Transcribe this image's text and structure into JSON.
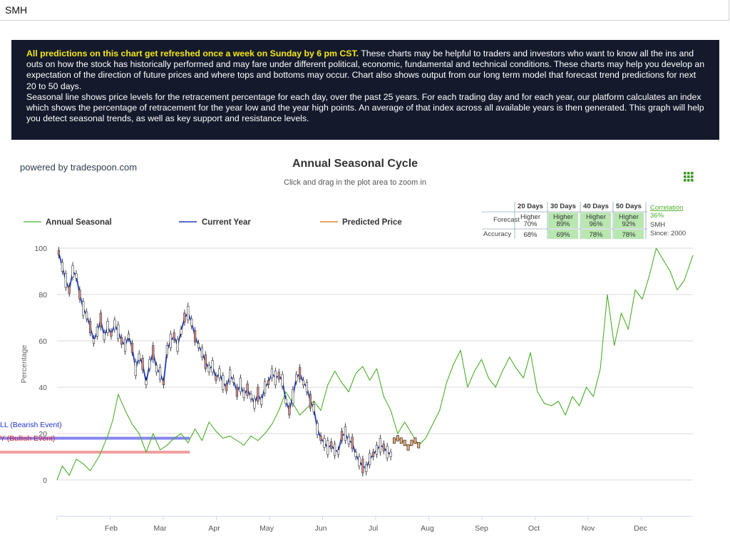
{
  "header": {
    "symbol": "SMH"
  },
  "notice": {
    "highlight": "All predictions on this chart get refreshed once a week on Sunday by 6 pm CST.",
    "body": " These charts may be helpful to traders and investors who want to know all the ins and outs on how the stock has historically performed and may fare under different political, economic, fundamental and technical conditions. These charts may help you develop an expectation of the direction of future prices and where tops and bottoms may occur. Chart also shows output from our long term model that forecast trend predictions for next 20 to 50 days.",
    "body2": "Seasonal line shows price levels for the retracement percentage for each day, over the past 25 years. For each trading day and for each year, our platform calculates an index which shows the percentage of retracement for the year low and the year high points. An average of that index across all available years is then generated. This graph will help you detect seasonal trends, as well as key support and resistance levels."
  },
  "chart": {
    "powered_by": "powered by tradespoon.com",
    "title": "Annual Seasonal Cycle",
    "subtitle": "Click and drag in the plot area to zoom in",
    "menu_icon": "grid-menu-icon"
  },
  "stats": {
    "headers": [
      "20 Days",
      "30 Days",
      "40 Days",
      "50 Days"
    ],
    "forecast_label": "Forecast",
    "accuracy_label": "Accuracy",
    "forecast": [
      {
        "dir": "Higher",
        "pct": "70%",
        "highlight": false
      },
      {
        "dir": "Higher",
        "pct": "89%",
        "highlight": true
      },
      {
        "dir": "Higher",
        "pct": "96%",
        "highlight": true
      },
      {
        "dir": "Higher",
        "pct": "92%",
        "highlight": true
      }
    ],
    "accuracy": [
      {
        "pct": "68%",
        "highlight": false
      },
      {
        "pct": "69%",
        "highlight": true
      },
      {
        "pct": "78%",
        "highlight": true
      },
      {
        "pct": "78%",
        "highlight": true
      }
    ],
    "correlation_label": "Correlation",
    "correlation_value": "36%",
    "symbol": "SMH",
    "since": "Since: 2000"
  },
  "event_labels": {
    "bearish": "LL (Bearish Event)",
    "bullish": "Y (Bullish Event)"
  },
  "colors": {
    "seasonal": "#4caf2a",
    "current": "#1f3bb8",
    "predicted": "#e8862a",
    "bearish": "#6f6ff2",
    "bullish": "#ef8f8f",
    "notice_bg": "#141a2c",
    "notice_highlight": "#f5e61c",
    "stats_green": "#b9e7b0"
  },
  "chart_data": {
    "type": "line",
    "ylabel": "Percentage",
    "ylim": [
      0,
      100
    ],
    "y_ticks": [
      0,
      20,
      40,
      60,
      80,
      100
    ],
    "x_ticks": [
      "Feb",
      "Mar",
      "Apr",
      "May",
      "Jun",
      "Jul",
      "Aug",
      "Sep",
      "Oct",
      "Nov",
      "Dec"
    ],
    "legend": [
      "Annual Seasonal",
      "Current Year",
      "Predicted Price"
    ],
    "series": [
      {
        "name": "Annual Seasonal",
        "x": [
          1,
          4,
          8,
          12,
          16,
          20,
          25,
          30,
          33,
          36,
          40,
          44,
          48,
          52,
          56,
          60,
          64,
          68,
          72,
          76,
          80,
          84,
          88,
          92,
          96,
          100,
          104,
          108,
          112,
          116,
          120,
          124,
          128,
          132,
          136,
          140,
          144,
          148,
          152,
          156,
          160,
          164,
          168,
          172,
          176,
          180,
          184,
          188,
          192,
          196,
          200,
          204,
          208,
          212,
          216,
          220,
          224,
          228,
          232,
          236,
          240,
          244,
          248,
          252,
          256,
          260,
          264,
          268,
          272,
          276,
          280,
          284,
          288,
          292,
          296,
          300,
          304,
          308,
          312,
          316,
          320,
          324,
          328,
          332,
          336,
          340,
          344,
          348,
          352,
          356,
          360,
          365
        ],
        "y": [
          0,
          6,
          2,
          9,
          7,
          4,
          10,
          19,
          26,
          37,
          30,
          24,
          20,
          12,
          20,
          13,
          15,
          18,
          20,
          16,
          22,
          17,
          25,
          21,
          18,
          19,
          17,
          15,
          19,
          17,
          20,
          24,
          30,
          38,
          33,
          28,
          31,
          34,
          30,
          41,
          47,
          42,
          38,
          46,
          49,
          43,
          48,
          36,
          30,
          20,
          25,
          20,
          15,
          18,
          24,
          30,
          42,
          50,
          56,
          40,
          47,
          52,
          44,
          40,
          47,
          53,
          48,
          44,
          55,
          38,
          33,
          32,
          34,
          28,
          36,
          32,
          40,
          36,
          48,
          80,
          58,
          72,
          65,
          82,
          78,
          88,
          100,
          95,
          90,
          82,
          86,
          97
        ]
      },
      {
        "name": "Current Year",
        "x": [
          2,
          4,
          6,
          8,
          10,
          12,
          14,
          16,
          18,
          20,
          22,
          24,
          26,
          28,
          30,
          32,
          34,
          36,
          38,
          40,
          42,
          44,
          46,
          48,
          50,
          52,
          54,
          56,
          58,
          60,
          62,
          64,
          66,
          68,
          70,
          72,
          74,
          76,
          78,
          80,
          82,
          84,
          86,
          88,
          90,
          92,
          94,
          96,
          98,
          100,
          102,
          104,
          106,
          108,
          110,
          112,
          114,
          116,
          118,
          120,
          122,
          124,
          126,
          128,
          130,
          132,
          134,
          136,
          138,
          140,
          142,
          144,
          146,
          148,
          150,
          152,
          154,
          156,
          158,
          160,
          162,
          164,
          166,
          168,
          170,
          172,
          174,
          176,
          178,
          180,
          182,
          184,
          186,
          188,
          190,
          192
        ],
        "y": [
          98,
          92,
          86,
          82,
          90,
          88,
          80,
          74,
          71,
          66,
          60,
          64,
          69,
          62,
          66,
          63,
          67,
          64,
          60,
          58,
          62,
          57,
          48,
          53,
          50,
          42,
          50,
          55,
          48,
          46,
          42,
          56,
          60,
          62,
          58,
          64,
          70,
          72,
          68,
          62,
          58,
          55,
          51,
          48,
          49,
          44,
          46,
          42,
          40,
          45,
          43,
          38,
          41,
          37,
          39,
          36,
          33,
          37,
          34,
          40,
          42,
          46,
          44,
          45,
          43,
          34,
          30,
          36,
          44,
          46,
          42,
          40,
          34,
          31,
          22,
          18,
          16,
          14,
          15,
          13,
          12,
          19,
          20,
          17,
          16,
          11,
          8,
          6,
          5,
          9,
          11,
          13,
          15,
          14,
          12,
          11
        ]
      },
      {
        "name": "Predicted Price",
        "x": [
          194,
          196,
          198,
          200,
          202,
          204,
          206,
          208
        ],
        "y": [
          17,
          18,
          17,
          16,
          14,
          16,
          17,
          15
        ]
      }
    ],
    "bands": [
      {
        "name": "Bearish Event",
        "y": 18,
        "x_end": 77
      },
      {
        "name": "Bullish Event",
        "y": 12,
        "x_end": 77
      }
    ]
  }
}
